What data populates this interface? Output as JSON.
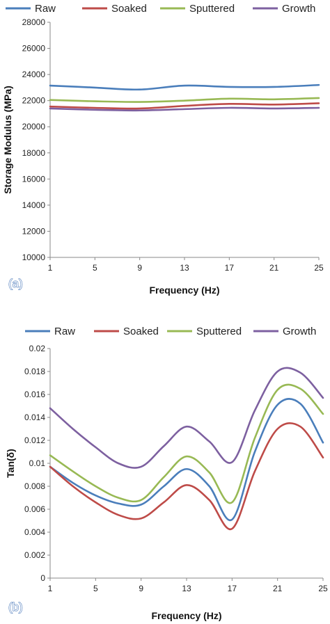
{
  "chart_data": [
    {
      "type": "line",
      "panel_label": "(a)",
      "xlabel": "Frequency (Hz)",
      "ylabel": "Storage Modulus (MPa)",
      "ylim": [
        10000,
        28000
      ],
      "yticks": [
        10000,
        12000,
        14000,
        16000,
        18000,
        20000,
        22000,
        24000,
        26000,
        28000
      ],
      "xlim": [
        1,
        25
      ],
      "xticks": [
        1,
        5,
        9,
        13,
        17,
        21,
        25
      ],
      "grid": false,
      "legend_position": "top",
      "x": [
        1,
        5,
        9,
        13,
        17,
        21,
        25
      ],
      "series": [
        {
          "name": "Raw",
          "color": "#4a7ebb",
          "values": [
            23150,
            23000,
            22850,
            23150,
            23050,
            23050,
            23200
          ]
        },
        {
          "name": "Soaked",
          "color": "#be4b48",
          "values": [
            21550,
            21450,
            21400,
            21600,
            21750,
            21700,
            21800
          ]
        },
        {
          "name": "Sputtered",
          "color": "#98b954",
          "values": [
            22050,
            21950,
            21900,
            22000,
            22150,
            22100,
            22200
          ]
        },
        {
          "name": "Growth",
          "color": "#7d60a0",
          "values": [
            21400,
            21300,
            21250,
            21350,
            21450,
            21400,
            21450
          ]
        }
      ]
    },
    {
      "type": "line",
      "panel_label": "(b)",
      "xlabel": "Frequency (Hz)",
      "ylabel": "Tan(δ)",
      "ylim": [
        0,
        0.02
      ],
      "yticks": [
        0,
        0.002,
        0.004,
        0.006,
        0.008,
        0.01,
        0.012,
        0.014,
        0.016,
        0.018,
        0.02
      ],
      "xlim": [
        1,
        25
      ],
      "xticks": [
        1,
        5,
        9,
        13,
        17,
        21,
        25
      ],
      "grid": false,
      "legend_position": "top",
      "x": [
        1,
        3,
        5,
        7,
        9,
        11,
        13,
        15,
        17,
        19,
        21,
        23,
        25
      ],
      "series": [
        {
          "name": "Raw",
          "color": "#4a7ebb",
          "values": [
            0.0097,
            0.0083,
            0.0072,
            0.0065,
            0.0064,
            0.008,
            0.0095,
            0.008,
            0.0051,
            0.011,
            0.0151,
            0.0152,
            0.0118
          ]
        },
        {
          "name": "Soaked",
          "color": "#be4b48",
          "values": [
            0.0097,
            0.008,
            0.0066,
            0.0055,
            0.0052,
            0.0066,
            0.0081,
            0.0068,
            0.0043,
            0.0093,
            0.013,
            0.0132,
            0.0105
          ]
        },
        {
          "name": "Sputtered",
          "color": "#98b954",
          "values": [
            0.0107,
            0.0093,
            0.008,
            0.007,
            0.0068,
            0.0088,
            0.0106,
            0.0092,
            0.0066,
            0.0122,
            0.0164,
            0.0165,
            0.0143
          ]
        },
        {
          "name": "Growth",
          "color": "#7d60a0",
          "values": [
            0.0148,
            0.013,
            0.0114,
            0.01,
            0.0097,
            0.0115,
            0.0132,
            0.0119,
            0.0101,
            0.0146,
            0.018,
            0.0179,
            0.0157
          ]
        }
      ]
    }
  ]
}
